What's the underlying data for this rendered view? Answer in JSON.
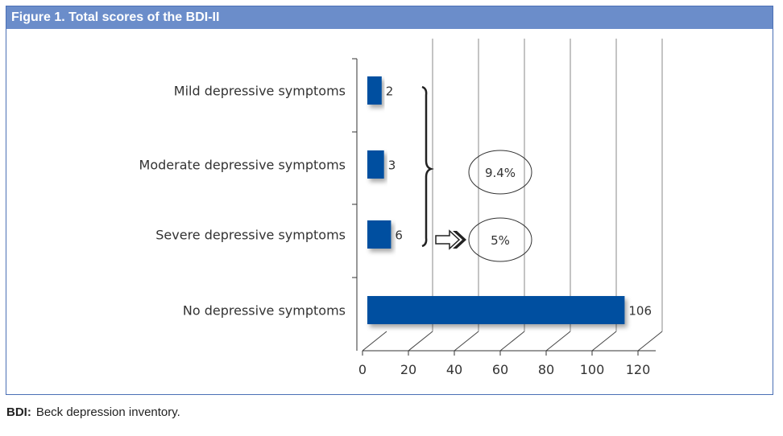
{
  "chart_data": {
    "type": "bar",
    "orientation": "horizontal",
    "title": "Figure 1.  Total scores of the BDI-II",
    "categories": [
      "Mild depressive symptoms",
      "Moderate depressive symptoms",
      "Severe depressive symptoms",
      "No depressive symptoms"
    ],
    "values": [
      2,
      3,
      6,
      106
    ],
    "data_labels": [
      "2",
      "3",
      "6",
      "106"
    ],
    "xlim": [
      0,
      120
    ],
    "xticks": [
      "0",
      "20",
      "40",
      "60",
      "80",
      "100",
      "120"
    ],
    "grid": true,
    "bar_color": "#0050a0",
    "annotations": [
      "9.4%",
      "5%"
    ]
  },
  "footnote": {
    "abbr": "BDI:",
    "text": "Beck depression inventory."
  }
}
